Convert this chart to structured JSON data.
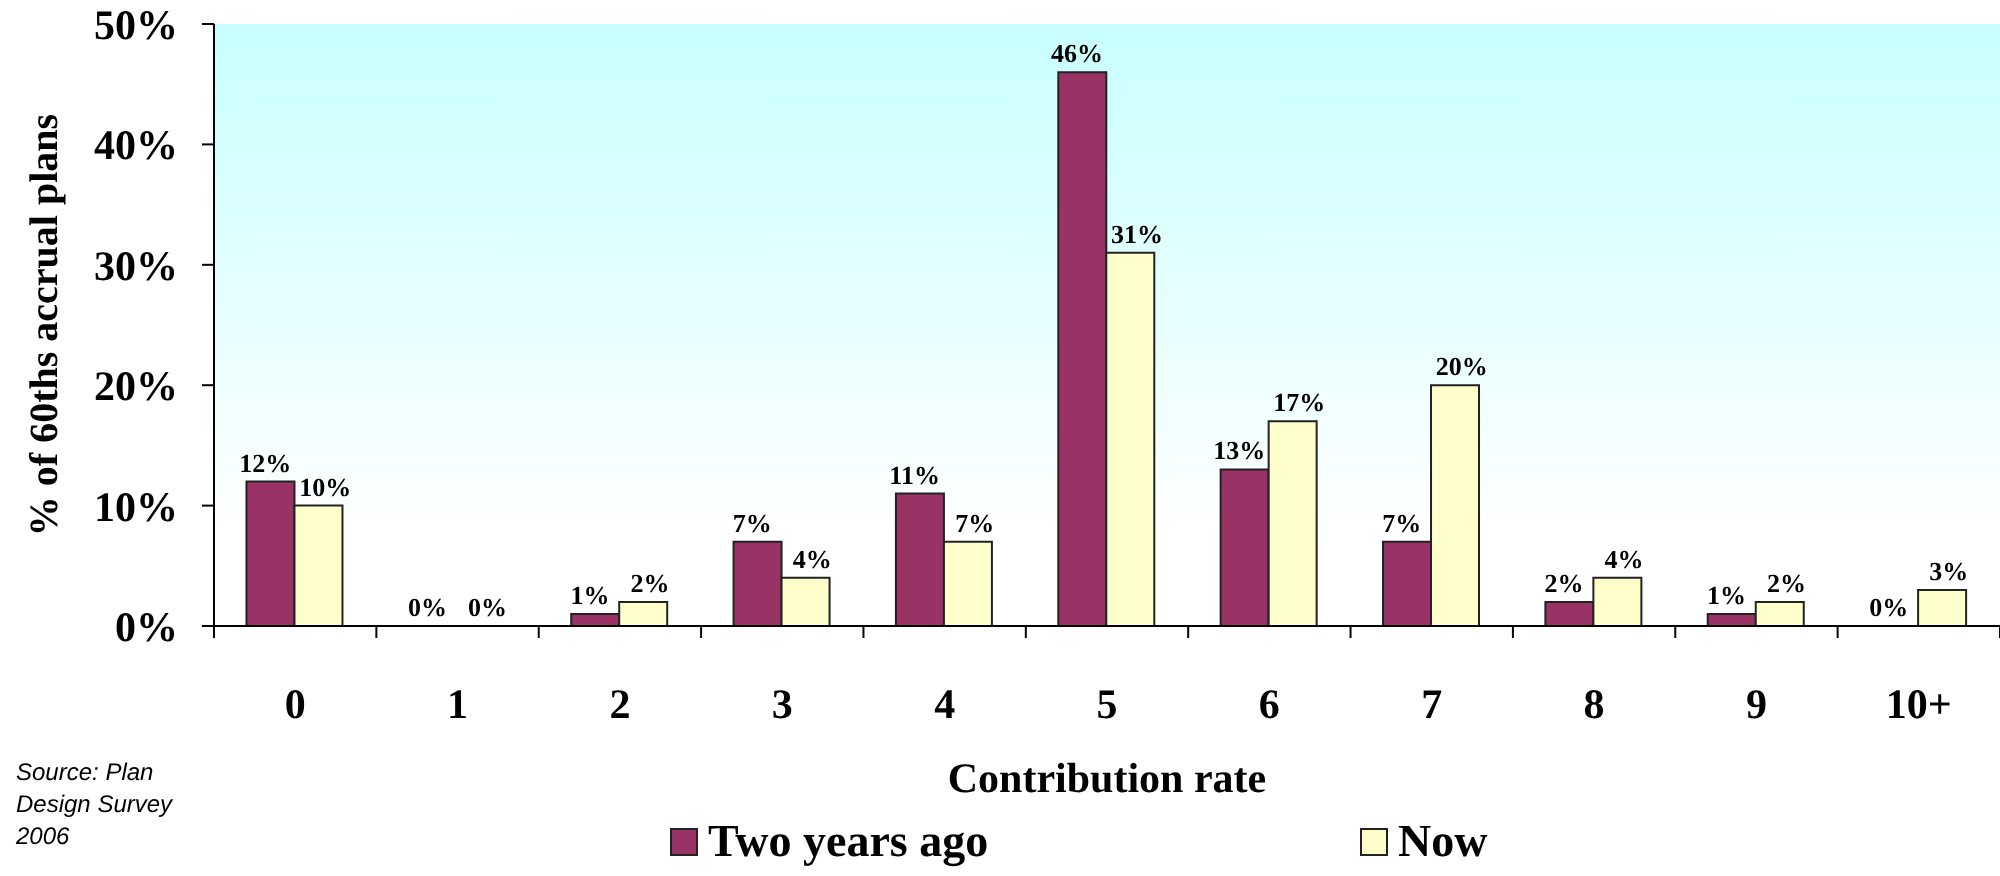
{
  "chart_data": {
    "type": "bar",
    "xlabel": "Contribution rate",
    "ylabel": "% of 60ths accrual plans",
    "categories": [
      "0",
      "1",
      "2",
      "3",
      "4",
      "5",
      "6",
      "7",
      "8",
      "9",
      "10+"
    ],
    "series": [
      {
        "name": "Two years ago",
        "color": "#993366",
        "values": [
          12,
          0,
          1,
          7,
          11,
          46,
          13,
          7,
          2,
          1,
          0
        ],
        "value_labels": [
          "12%",
          "0%",
          "1%",
          "7%",
          "11%",
          "46%",
          "13%",
          "7%",
          "2%",
          "1%",
          "0%"
        ]
      },
      {
        "name": "Now",
        "color": "#ffffcc",
        "values": [
          10,
          0,
          2,
          4,
          7,
          31,
          17,
          20,
          4,
          2,
          3
        ],
        "value_labels": [
          "10%",
          "0%",
          "2%",
          "4%",
          "7%",
          "31%",
          "17%",
          "20%",
          "4%",
          "2%",
          "3%"
        ]
      }
    ],
    "ylim": [
      0,
      50
    ],
    "yticks": [
      {
        "value": 0,
        "label": "0%"
      },
      {
        "value": 10,
        "label": "10%"
      },
      {
        "value": 20,
        "label": "20%"
      },
      {
        "value": 30,
        "label": "30%"
      },
      {
        "value": 40,
        "label": "40%"
      },
      {
        "value": 50,
        "label": "50%"
      }
    ],
    "legend": "bottom",
    "annotations": [
      "Source: Plan Design Survey 2006"
    ]
  }
}
